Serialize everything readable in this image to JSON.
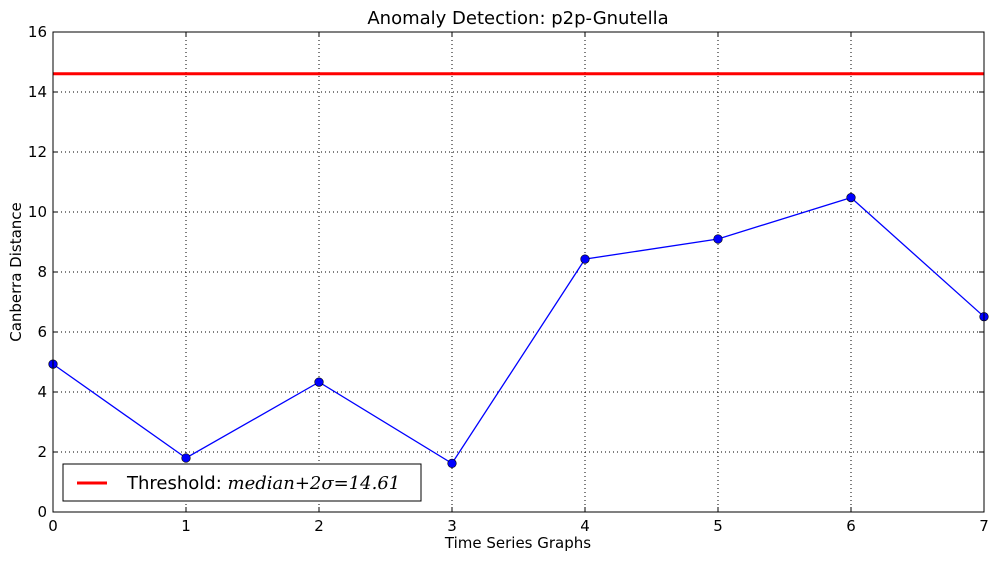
{
  "chart_data": {
    "type": "line",
    "title": "Anomaly Detection: p2p-Gnutella",
    "xlabel": "Time Series Graphs",
    "ylabel": "Canberra Distance",
    "xlim": [
      0,
      7
    ],
    "ylim": [
      0,
      16
    ],
    "xticks": [
      "0",
      "1",
      "2",
      "3",
      "4",
      "5",
      "6",
      "7"
    ],
    "yticks": [
      "0",
      "2",
      "4",
      "6",
      "8",
      "10",
      "12",
      "14",
      "16"
    ],
    "grid": true,
    "legend_position": "lower-left",
    "series": [
      {
        "x": [
          0,
          1,
          2,
          3,
          4,
          5,
          6,
          7
        ],
        "values": [
          4.93,
          1.8,
          4.33,
          1.62,
          8.43,
          9.1,
          10.48,
          6.51
        ],
        "color": "#0000ff",
        "marker": "circle"
      }
    ],
    "threshold": {
      "value": 14.61,
      "color": "#ff0000",
      "legend_prefix": "Threshold: ",
      "legend_expr": "median+2σ=14.61"
    }
  }
}
